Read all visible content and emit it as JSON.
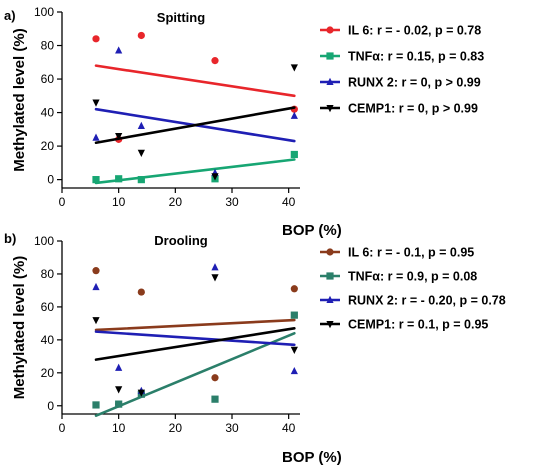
{
  "chart_data": [
    {
      "panel": "a)",
      "type": "scatter",
      "title": "Spitting",
      "xlabel": "BOP (%)",
      "ylabel": "Methylated level (%)",
      "xlim": [
        0,
        42
      ],
      "ylim": [
        -5,
        100
      ],
      "x_ticks": [
        0,
        10,
        20,
        30,
        40
      ],
      "y_ticks": [
        0,
        20,
        40,
        60,
        80,
        100
      ],
      "legend_position": "right",
      "series": [
        {
          "name": "IL 6: r = - 0.02, p = 0.78",
          "color": "#e8262b",
          "marker": "circle",
          "points": [
            [
              6,
              84
            ],
            [
              10,
              24
            ],
            [
              14,
              86
            ],
            [
              27,
              71
            ],
            [
              41,
              42
            ]
          ],
          "fit": [
            [
              6,
              68
            ],
            [
              41,
              50
            ]
          ]
        },
        {
          "name": "TNFα: r = 0.15, p = 0.83",
          "color": "#17a673",
          "marker": "square",
          "points": [
            [
              6,
              0
            ],
            [
              10,
              0.5
            ],
            [
              14,
              0
            ],
            [
              27,
              0.5
            ],
            [
              41,
              15
            ]
          ],
          "fit": [
            [
              6,
              -2
            ],
            [
              41,
              12
            ]
          ]
        },
        {
          "name": "RUNX 2: r = 0, p > 0.99",
          "color": "#1f1fb4",
          "marker": "triangle-up",
          "points": [
            [
              6,
              25
            ],
            [
              10,
              77
            ],
            [
              14,
              32
            ],
            [
              27,
              4
            ],
            [
              41,
              38
            ]
          ],
          "fit": [
            [
              6,
              42
            ],
            [
              41,
              23
            ]
          ]
        },
        {
          "name": "CEMP1: r = 0, p > 0.99",
          "color": "#000000",
          "marker": "triangle-down",
          "points": [
            [
              6,
              46
            ],
            [
              10,
              26
            ],
            [
              14,
              16
            ],
            [
              27,
              2
            ],
            [
              41,
              67
            ]
          ],
          "fit": [
            [
              6,
              22
            ],
            [
              41,
              43
            ]
          ]
        }
      ]
    },
    {
      "panel": "b)",
      "type": "scatter",
      "title": "Drooling",
      "xlabel": "BOP (%)",
      "ylabel": "Methylated level (%)",
      "xlim": [
        0,
        42
      ],
      "ylim": [
        -5,
        100
      ],
      "x_ticks": [
        0,
        10,
        20,
        30,
        40
      ],
      "y_ticks": [
        0,
        20,
        40,
        60,
        80,
        100
      ],
      "legend_position": "right",
      "series": [
        {
          "name": "IL 6: r = - 0.1, p = 0.95",
          "color": "#8a3b1c",
          "marker": "circle",
          "points": [
            [
              6,
              82
            ],
            [
              10,
              1
            ],
            [
              14,
              69
            ],
            [
              27,
              17
            ],
            [
              41,
              71
            ]
          ],
          "fit": [
            [
              6,
              46
            ],
            [
              41,
              52
            ]
          ]
        },
        {
          "name": "TNFα: r = 0.9, p = 0.08",
          "color": "#2b7f6a",
          "marker": "square",
          "points": [
            [
              6,
              0.5
            ],
            [
              10,
              1
            ],
            [
              14,
              7
            ],
            [
              27,
              4
            ],
            [
              41,
              55
            ]
          ],
          "fit": [
            [
              6,
              -6
            ],
            [
              41,
              44
            ]
          ]
        },
        {
          "name": "RUNX 2: r = - 0.20, p = 0.78",
          "color": "#1f1fb4",
          "marker": "triangle-up",
          "points": [
            [
              6,
              72
            ],
            [
              10,
              23
            ],
            [
              14,
              9
            ],
            [
              27,
              84
            ],
            [
              41,
              21
            ]
          ],
          "fit": [
            [
              6,
              45
            ],
            [
              41,
              37
            ]
          ]
        },
        {
          "name": "CEMP1: r = 0.1, p = 0.95",
          "color": "#000000",
          "marker": "triangle-down",
          "points": [
            [
              6,
              52
            ],
            [
              10,
              10
            ],
            [
              14,
              8
            ],
            [
              27,
              78
            ],
            [
              41,
              34
            ]
          ],
          "fit": [
            [
              6,
              28
            ],
            [
              41,
              47
            ]
          ]
        }
      ]
    }
  ]
}
